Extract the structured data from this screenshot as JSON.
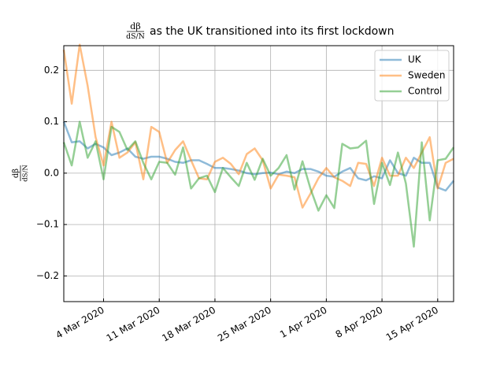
{
  "chart_data": {
    "type": "line",
    "title": {
      "numerator": "dβ",
      "denominator": "dS/N",
      "text": "as the UK transitioned into its first lockdown"
    },
    "ylabel": {
      "numerator": "dβ",
      "denominator": "dS/N"
    },
    "x": [
      "2020-02-28",
      "2020-02-29",
      "2020-03-01",
      "2020-03-02",
      "2020-03-03",
      "2020-03-04",
      "2020-03-05",
      "2020-03-06",
      "2020-03-07",
      "2020-03-08",
      "2020-03-09",
      "2020-03-10",
      "2020-03-11",
      "2020-03-12",
      "2020-03-13",
      "2020-03-14",
      "2020-03-15",
      "2020-03-16",
      "2020-03-17",
      "2020-03-18",
      "2020-03-19",
      "2020-03-20",
      "2020-03-21",
      "2020-03-22",
      "2020-03-23",
      "2020-03-24",
      "2020-03-25",
      "2020-03-26",
      "2020-03-27",
      "2020-03-28",
      "2020-03-29",
      "2020-03-30",
      "2020-03-31",
      "2020-04-01",
      "2020-04-02",
      "2020-04-03",
      "2020-04-04",
      "2020-04-05",
      "2020-04-06",
      "2020-04-07",
      "2020-04-08",
      "2020-04-09",
      "2020-04-10",
      "2020-04-11",
      "2020-04-12",
      "2020-04-13",
      "2020-04-14",
      "2020-04-15",
      "2020-04-16",
      "2020-04-17"
    ],
    "series": [
      {
        "name": "UK",
        "color": "#1f77b4",
        "values": [
          0.1,
          0.06,
          0.062,
          0.048,
          0.057,
          0.05,
          0.035,
          0.04,
          0.048,
          0.032,
          0.028,
          0.032,
          0.032,
          0.028,
          0.022,
          0.02,
          0.025,
          0.025,
          0.018,
          0.01,
          0.01,
          0.008,
          0.005,
          0,
          -0.002,
          0,
          0.001,
          -0.002,
          0.003,
          0,
          0.008,
          0.008,
          0.003,
          -0.005,
          -0.007,
          0.003,
          0.01,
          -0.01,
          -0.014,
          -0.006,
          -0.01,
          0.025,
          0,
          -0.005,
          0.03,
          0.02,
          0.02,
          -0.028,
          -0.034,
          -0.015
        ]
      },
      {
        "name": "Sweden",
        "color": "#ff7f0e",
        "values": [
          0.24,
          0.135,
          0.25,
          0.17,
          0.07,
          0.015,
          0.1,
          0.03,
          0.04,
          0.06,
          -0.012,
          0.09,
          0.08,
          0.02,
          0.045,
          0.062,
          0.025,
          -0.01,
          -0.012,
          0.022,
          0.03,
          0.018,
          -0.002,
          0.037,
          0.048,
          0.025,
          -0.03,
          -0.003,
          -0.005,
          -0.008,
          -0.067,
          -0.04,
          -0.01,
          0.01,
          -0.008,
          -0.015,
          -0.025,
          0.02,
          0.018,
          -0.025,
          0.03,
          -0.005,
          -0.005,
          0.03,
          0.01,
          0.04,
          0.07,
          -0.03,
          0.02,
          0.028
        ]
      },
      {
        "name": "Control",
        "color": "#2ca02c",
        "values": [
          0.06,
          0.015,
          0.1,
          0.03,
          0.062,
          -0.012,
          0.09,
          0.08,
          0.045,
          0.062,
          0.02,
          -0.012,
          0.022,
          0.02,
          -0.003,
          0.05,
          -0.03,
          -0.01,
          -0.005,
          -0.037,
          0.01,
          -0.008,
          -0.025,
          0.02,
          -0.013,
          0.028,
          -0.005,
          0.01,
          0.035,
          -0.032,
          0.023,
          -0.03,
          -0.073,
          -0.043,
          -0.068,
          0.057,
          0.048,
          0.05,
          0.063,
          -0.06,
          0.02,
          -0.023,
          0.04,
          -0.02,
          -0.143,
          0.06,
          -0.092,
          0.025,
          0.028,
          0.05
        ]
      }
    ],
    "xlim": [
      "2020-02-28",
      "2020-04-17"
    ],
    "xticks": [
      {
        "value": "2020-03-04",
        "label": "4 Mar 2020"
      },
      {
        "value": "2020-03-11",
        "label": "11 Mar 2020"
      },
      {
        "value": "2020-03-18",
        "label": "18 Mar 2020"
      },
      {
        "value": "2020-03-25",
        "label": "25 Mar 2020"
      },
      {
        "value": "2020-04-01",
        "label": "1 Apr 2020"
      },
      {
        "value": "2020-04-08",
        "label": "8 Apr 2020"
      },
      {
        "value": "2020-04-15",
        "label": "15 Apr 2020"
      }
    ],
    "ylim": [
      -0.25,
      0.248
    ],
    "yticks": [
      {
        "value": -0.2,
        "label": "−0.2"
      },
      {
        "value": -0.1,
        "label": "−0.1"
      },
      {
        "value": 0,
        "label": "0.0"
      },
      0.1,
      0.2
    ],
    "grid": true,
    "legend": "upper right"
  }
}
